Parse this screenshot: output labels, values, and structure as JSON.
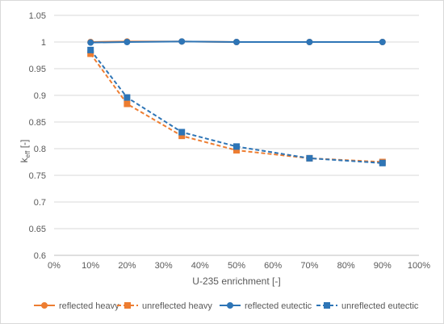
{
  "chart_data": {
    "type": "line",
    "xlabel": "U-235 enrichment [-]",
    "ylabel_main": "k",
    "ylabel_sub": "eff",
    "ylabel_suffix": " [-]",
    "xlim": [
      0,
      100
    ],
    "ylim": [
      0.6,
      1.05
    ],
    "x_ticks": [
      0,
      10,
      20,
      30,
      40,
      50,
      60,
      70,
      80,
      90,
      100
    ],
    "x_tick_labels": [
      "0%",
      "10%",
      "20%",
      "30%",
      "40%",
      "50%",
      "60%",
      "70%",
      "80%",
      "90%",
      "100%"
    ],
    "y_ticks": [
      0.6,
      0.65,
      0.7,
      0.75,
      0.8,
      0.85,
      0.9,
      0.95,
      1.0,
      1.05
    ],
    "y_tick_labels": [
      "0.6",
      "0.65",
      "0.7",
      "0.75",
      "0.8",
      "0.85",
      "0.9",
      "0.95",
      "1",
      "1.05"
    ],
    "grid": "horizontal",
    "legend_position": "bottom",
    "series": [
      {
        "name": "reflected heavy",
        "color": "#ed7d31",
        "marker": "circle",
        "dash": "solid",
        "x": [
          10,
          20,
          35,
          50,
          70,
          90
        ],
        "values": [
          1.0,
          1.001,
          1.001,
          1.0,
          1.0,
          1.0
        ]
      },
      {
        "name": "unreflected heavy",
        "color": "#ed7d31",
        "marker": "square",
        "dash": "dashed",
        "x": [
          10,
          20,
          35,
          50,
          70,
          90
        ],
        "values": [
          0.978,
          0.884,
          0.824,
          0.797,
          0.782,
          0.775
        ]
      },
      {
        "name": "reflected eutectic",
        "color": "#2e75b6",
        "marker": "circle",
        "dash": "solid",
        "x": [
          10,
          20,
          35,
          50,
          70,
          90
        ],
        "values": [
          0.999,
          1.0,
          1.001,
          1.0,
          1.0,
          1.0
        ]
      },
      {
        "name": "unreflected eutectic",
        "color": "#2e75b6",
        "marker": "square",
        "dash": "dashed",
        "x": [
          10,
          20,
          35,
          50,
          70,
          90
        ],
        "values": [
          0.985,
          0.896,
          0.831,
          0.804,
          0.782,
          0.773
        ]
      }
    ]
  }
}
